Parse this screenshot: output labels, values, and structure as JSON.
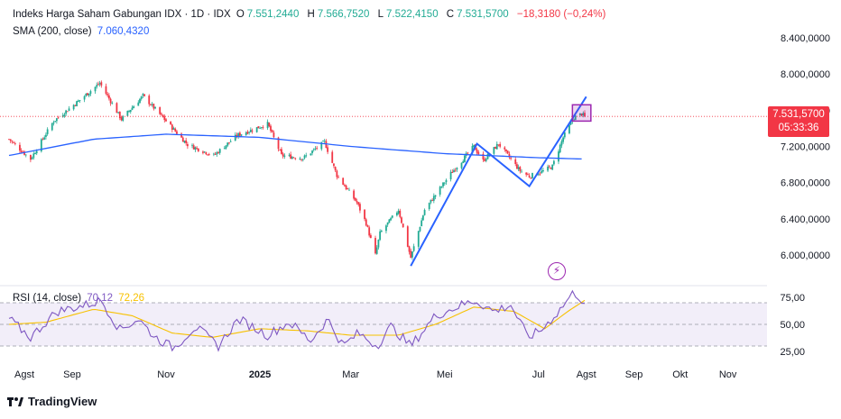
{
  "legend": {
    "title": "Indeks Harga Saham Gabungan IDX · 1D · IDX",
    "open_label": "O",
    "open": "7.551,2440",
    "high_label": "H",
    "high": "7.566,7520",
    "low_label": "L",
    "low": "7.522,4150",
    "close_label": "C",
    "close": "7.531,5700",
    "change": "−18,3180 (−0,24%)",
    "sma_label": "SMA (200, close)",
    "sma_value": "7.060,4320",
    "rsi_label": "RSI (14, close)",
    "rsi_value": "70,12",
    "rsi_ma_value": "72,26"
  },
  "price_tag": {
    "price": "7.531,5700",
    "countdown": "05:33:36"
  },
  "brand": "TradingView",
  "alert_icon": "lightning-alert-icon",
  "colors": {
    "up": "#22ab94",
    "down": "#f23645",
    "sma": "#2962ff",
    "rsi": "#7e57c2",
    "rsi_ma": "#f7c100",
    "pattern": "#2962ff",
    "highlight": "#9c27b0"
  },
  "chart_data": [
    {
      "type": "candlestick",
      "name": "Indeks Harga Saham Gabungan IDX",
      "interval": "1D",
      "ylim": [
        5800,
        8500
      ],
      "y_ticks": [
        "8.400,0000",
        "8.000,0000",
        "7.600,0000",
        "7.200,0000",
        "6.800,0000",
        "6.400,0000",
        "6.000,0000"
      ],
      "y_tick_values": [
        8400,
        8000,
        7600,
        7200,
        6800,
        6400,
        6000
      ],
      "x_ticks": [
        "Agst",
        "Sep",
        "Nov",
        "2025",
        "Mar",
        "Mei",
        "Jul",
        "Agst",
        "Sep",
        "Okt",
        "Nov"
      ],
      "x_tick_dates": [
        "2024-08-01",
        "2024-09-01",
        "2024-11-01",
        "2025-01-01",
        "2025-03-01",
        "2025-05-01",
        "2025-07-01",
        "2025-08-01",
        "2025-09-01",
        "2025-10-01",
        "2025-11-01"
      ],
      "price_keypoints": [
        [
          "2024-07-22",
          7280
        ],
        [
          "2024-08-05",
          7060
        ],
        [
          "2024-08-20",
          7480
        ],
        [
          "2024-09-05",
          7700
        ],
        [
          "2024-09-19",
          7900
        ],
        [
          "2024-10-03",
          7500
        ],
        [
          "2024-10-17",
          7760
        ],
        [
          "2024-11-01",
          7480
        ],
        [
          "2024-11-15",
          7220
        ],
        [
          "2024-12-02",
          7100
        ],
        [
          "2024-12-17",
          7320
        ],
        [
          "2025-01-06",
          7450
        ],
        [
          "2025-01-15",
          7100
        ],
        [
          "2025-01-29",
          7070
        ],
        [
          "2025-02-12",
          7250
        ],
        [
          "2025-02-20",
          6880
        ],
        [
          "2025-03-05",
          6580
        ],
        [
          "2025-03-11",
          6350
        ],
        [
          "2025-03-17",
          6000
        ],
        [
          "2025-03-20",
          6240
        ],
        [
          "2025-04-01",
          6500
        ],
        [
          "2025-04-09",
          5970
        ],
        [
          "2025-04-18",
          6500
        ],
        [
          "2025-05-05",
          6900
        ],
        [
          "2025-05-20",
          7200
        ],
        [
          "2025-05-26",
          7040
        ],
        [
          "2025-06-05",
          7230
        ],
        [
          "2025-06-12",
          7080
        ],
        [
          "2025-06-19",
          6930
        ],
        [
          "2025-06-25",
          6870
        ],
        [
          "2025-07-03",
          6920
        ],
        [
          "2025-07-10",
          6980
        ],
        [
          "2025-07-17",
          7300
        ],
        [
          "2025-07-24",
          7520
        ],
        [
          "2025-07-29",
          7560
        ],
        [
          "2025-07-31",
          7531.57
        ]
      ],
      "sma_200": [
        [
          "2024-07-22",
          7100
        ],
        [
          "2024-09-15",
          7280
        ],
        [
          "2024-11-01",
          7335
        ],
        [
          "2025-01-01",
          7300
        ],
        [
          "2025-03-01",
          7200
        ],
        [
          "2025-05-01",
          7120
        ],
        [
          "2025-07-01",
          7075
        ],
        [
          "2025-07-31",
          7060.432
        ]
      ],
      "pattern_lines": [
        [
          "2025-04-09",
          5880
        ],
        [
          "2025-05-22",
          7230
        ],
        [
          "2025-06-25",
          6760
        ],
        [
          "2025-08-01",
          7750
        ]
      ],
      "highlight_box": {
        "x0": "2025-07-23",
        "x1": "2025-08-04",
        "y0": 7480,
        "y1": 7660
      },
      "last_price": 7531.57
    },
    {
      "type": "line",
      "name": "RSI (14, close)",
      "ylim": [
        20,
        80
      ],
      "y_ticks": [
        "75,00",
        "50,00",
        "25,00"
      ],
      "y_tick_values": [
        75,
        50,
        25
      ],
      "band": [
        30,
        70
      ],
      "rsi_keypoints": [
        [
          "2024-07-22",
          55
        ],
        [
          "2024-08-05",
          38
        ],
        [
          "2024-08-22",
          62
        ],
        [
          "2024-09-10",
          68
        ],
        [
          "2024-09-20",
          72
        ],
        [
          "2024-10-02",
          45
        ],
        [
          "2024-10-14",
          55
        ],
        [
          "2024-10-25",
          38
        ],
        [
          "2024-11-06",
          28
        ],
        [
          "2024-11-20",
          48
        ],
        [
          "2024-12-05",
          30
        ],
        [
          "2024-12-18",
          55
        ],
        [
          "2025-01-06",
          40
        ],
        [
          "2025-01-20",
          52
        ],
        [
          "2025-02-03",
          35
        ],
        [
          "2025-02-14",
          55
        ],
        [
          "2025-02-24",
          30
        ],
        [
          "2025-03-06",
          42
        ],
        [
          "2025-03-18",
          30
        ],
        [
          "2025-03-27",
          48
        ],
        [
          "2025-04-09",
          30
        ],
        [
          "2025-04-25",
          58
        ],
        [
          "2025-05-12",
          68
        ],
        [
          "2025-05-21",
          72
        ],
        [
          "2025-06-02",
          62
        ],
        [
          "2025-06-13",
          68
        ],
        [
          "2025-06-24",
          38
        ],
        [
          "2025-07-03",
          45
        ],
        [
          "2025-07-14",
          62
        ],
        [
          "2025-07-24",
          80
        ],
        [
          "2025-07-31",
          70.12
        ]
      ],
      "rsi_ma_keypoints": [
        [
          "2024-07-22",
          50
        ],
        [
          "2024-08-15",
          52
        ],
        [
          "2024-09-15",
          64
        ],
        [
          "2024-10-10",
          58
        ],
        [
          "2024-11-05",
          42
        ],
        [
          "2024-12-01",
          38
        ],
        [
          "2025-01-01",
          46
        ],
        [
          "2025-02-01",
          44
        ],
        [
          "2025-03-01",
          40
        ],
        [
          "2025-04-01",
          40
        ],
        [
          "2025-04-25",
          50
        ],
        [
          "2025-05-20",
          66
        ],
        [
          "2025-06-15",
          62
        ],
        [
          "2025-07-05",
          46
        ],
        [
          "2025-07-20",
          62
        ],
        [
          "2025-07-31",
          72.26
        ]
      ]
    }
  ]
}
